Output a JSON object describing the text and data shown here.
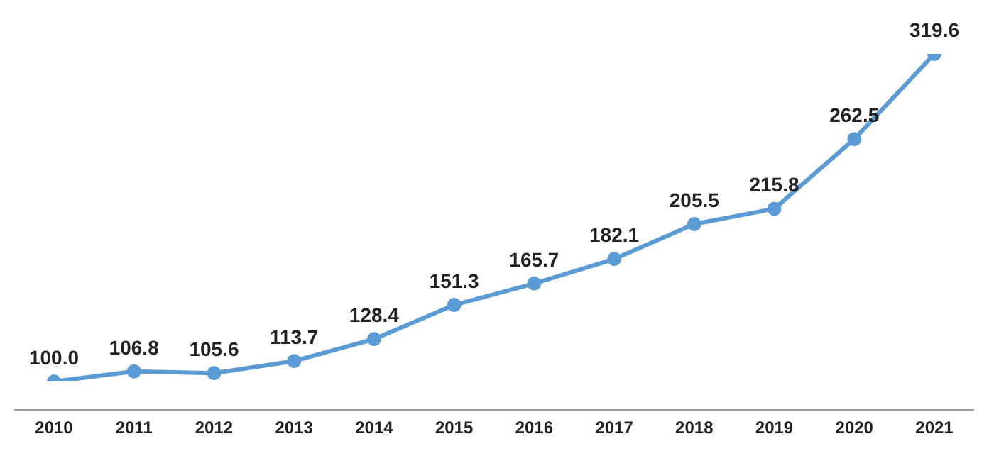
{
  "chart_data": {
    "type": "line",
    "categories": [
      "2010",
      "2011",
      "2012",
      "2013",
      "2014",
      "2015",
      "2016",
      "2017",
      "2018",
      "2019",
      "2020",
      "2021"
    ],
    "series": [
      {
        "color": "#5b9bd5",
        "values": [
          100.0,
          106.8,
          105.6,
          113.7,
          128.4,
          151.3,
          165.7,
          182.1,
          205.5,
          215.8,
          262.5,
          319.6
        ],
        "value_labels": [
          "100.0",
          "106.8",
          "105.6",
          "113.7",
          "128.4",
          "151.3",
          "165.7",
          "182.1",
          "205.5",
          "215.8",
          "262.5",
          "319.6"
        ]
      }
    ],
    "tick_labels": "x",
    "data_labels": true,
    "marker": "circle",
    "grid": false,
    "legend": false
  }
}
